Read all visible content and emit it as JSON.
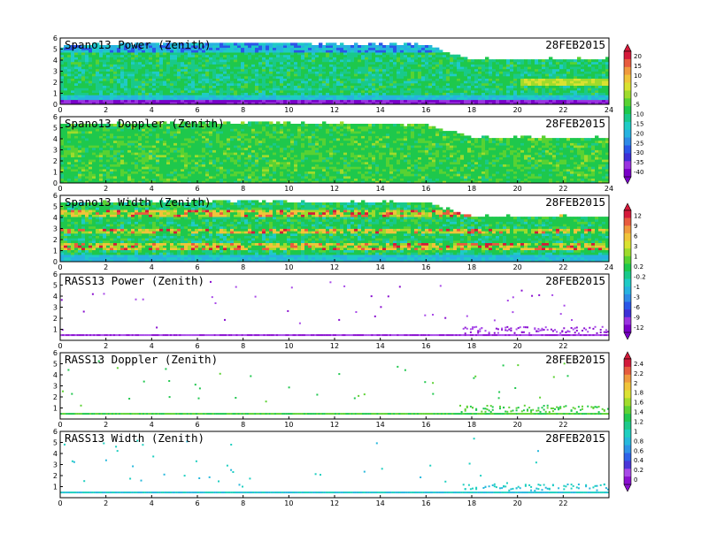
{
  "colors": {
    "profiler_scale": [
      "#7a00c8",
      "#9a33e0",
      "#3d2fd6",
      "#2a56e8",
      "#2f8ae6",
      "#27b2e0",
      "#1fcbc6",
      "#19c98a",
      "#1ec84c",
      "#58d233",
      "#9edb2c",
      "#d9e231",
      "#f0c43a",
      "#f09a3e",
      "#e85b3e",
      "#d5193a"
    ],
    "rass_scale": [
      "#8a10d0",
      "#a84ae8",
      "#4a36d8",
      "#2e62e8",
      "#2f93e6",
      "#27b8dc",
      "#1fcfc0",
      "#1ec98a",
      "#22c850",
      "#5ed234",
      "#a2dc2c",
      "#dbe233",
      "#f0c43a",
      "#ef9a3f",
      "#e65c3e",
      "#d21a3a"
    ]
  },
  "panels": [
    {
      "title": "Spano13 Power (Zenith)",
      "date": "28FEB2015",
      "type": "profiler",
      "field": "power",
      "colorbar": "A"
    },
    {
      "title": "Spano13 Doppler (Zenith)",
      "date": "28FEB2015",
      "type": "profiler",
      "field": "doppler",
      "colorbar": "A"
    },
    {
      "title": "Spano13 Width (Zenith)",
      "date": "28FEB2015",
      "type": "profiler",
      "field": "width",
      "colorbar": "B"
    },
    {
      "title": "RASS13 Power (Zenith)",
      "date": "28FEB2015",
      "type": "rass",
      "field": "power",
      "colorbar": "B"
    },
    {
      "title": "RASS13 Doppler (Zenith)",
      "date": "28FEB2015",
      "type": "rass",
      "field": "doppler",
      "colorbar": "C"
    },
    {
      "title": "RASS13 Width (Zenith)",
      "date": "28FEB2015",
      "type": "rass",
      "field": "width",
      "colorbar": "C"
    }
  ],
  "colorbars": {
    "A": {
      "labels": [
        "20",
        "15",
        "10",
        "5",
        "0",
        "-5",
        "-10",
        "-15",
        "-20",
        "-25",
        "-30",
        "-35",
        "-40"
      ]
    },
    "B": {
      "labels": [
        "12",
        "9",
        "6",
        "3",
        "1",
        "0.2",
        "-0.2",
        "-1",
        "-3",
        "-6",
        "-9",
        "-12"
      ]
    },
    "C": {
      "labels": [
        "2.4",
        "2.2",
        "2",
        "1.8",
        "1.6",
        "1.4",
        "1.2",
        "1",
        "0.8",
        "0.6",
        "0.4",
        "0.2",
        "0"
      ]
    }
  },
  "chart_data": [
    {
      "type": "heatmap",
      "title": "Spano13 Power (Zenith)",
      "date": "28FEB2015",
      "xlim": [
        0,
        24
      ],
      "ylim": [
        0,
        6
      ],
      "x_ticks": [
        "0",
        "2",
        "4",
        "6",
        "8",
        "10",
        "12",
        "14",
        "16",
        "18",
        "20",
        "22",
        "24"
      ],
      "y_ticks": [
        "0",
        "1",
        "2",
        "3",
        "4",
        "5",
        "6"
      ],
      "data_top_km": [
        [
          0,
          5.2
        ],
        [
          6,
          5.5
        ],
        [
          12,
          5.4
        ],
        [
          16,
          5.3
        ],
        [
          17,
          4.5
        ],
        [
          18,
          4.0
        ],
        [
          24,
          4.0
        ]
      ],
      "colorbar": [
        "20",
        "15",
        "10",
        "5",
        "0",
        "-5",
        "-10",
        "-15",
        "-20",
        "-25",
        "-30",
        "-35",
        "-40"
      ]
    },
    {
      "type": "heatmap",
      "title": "Spano13 Doppler (Zenith)",
      "date": "28FEB2015",
      "xlim": [
        0,
        24
      ],
      "ylim": [
        0,
        6
      ],
      "x_ticks": [
        "0",
        "2",
        "4",
        "6",
        "8",
        "10",
        "12",
        "14",
        "16",
        "18",
        "20",
        "22",
        "24"
      ],
      "y_ticks": [
        "0",
        "1",
        "2",
        "3",
        "4",
        "5",
        "6"
      ],
      "data_top_km": [
        [
          0,
          5.2
        ],
        [
          6,
          5.4
        ],
        [
          12,
          5.3
        ],
        [
          16,
          5.2
        ],
        [
          17,
          4.6
        ],
        [
          18,
          4.0
        ],
        [
          24,
          4.0
        ]
      ]
    },
    {
      "type": "heatmap",
      "title": "Spano13 Width (Zenith)",
      "date": "28FEB2015",
      "xlim": [
        0,
        24
      ],
      "ylim": [
        0,
        6
      ],
      "x_ticks": [
        "0",
        "2",
        "4",
        "6",
        "8",
        "10",
        "12",
        "14",
        "16",
        "18",
        "20",
        "22",
        "24"
      ],
      "y_ticks": [
        "0",
        "1",
        "2",
        "3",
        "4",
        "5",
        "6"
      ],
      "data_top_km": [
        [
          0,
          5.2
        ],
        [
          6,
          5.4
        ],
        [
          12,
          5.3
        ],
        [
          16,
          5.3
        ],
        [
          17,
          4.6
        ],
        [
          18,
          4.0
        ],
        [
          24,
          4.0
        ]
      ],
      "colorbar": [
        "12",
        "9",
        "6",
        "3",
        "1",
        "0.2",
        "-0.2",
        "-1",
        "-3",
        "-6",
        "-9",
        "-12"
      ]
    },
    {
      "type": "scatter",
      "title": "RASS13 Power (Zenith)",
      "date": "28FEB2015",
      "xlim": [
        0,
        24
      ],
      "ylim": [
        0,
        6
      ],
      "x_ticks": [
        "0",
        "2",
        "4",
        "6",
        "8",
        "10",
        "12",
        "14",
        "16",
        "18",
        "20",
        "22"
      ],
      "y_ticks": [
        "1",
        "2",
        "3",
        "4",
        "5",
        "6"
      ],
      "band_km": [
        0.5,
        0.8
      ]
    },
    {
      "type": "scatter",
      "title": "RASS13 Doppler (Zenith)",
      "date": "28FEB2015",
      "xlim": [
        0,
        24
      ],
      "ylim": [
        0,
        6
      ],
      "x_ticks": [
        "0",
        "2",
        "4",
        "6",
        "8",
        "10",
        "12",
        "14",
        "16",
        "18",
        "20",
        "22"
      ],
      "y_ticks": [
        "1",
        "2",
        "3",
        "4",
        "5",
        "6"
      ],
      "band_km": [
        0.5,
        0.8
      ],
      "colorbar": [
        "2.4",
        "2.2",
        "2",
        "1.8",
        "1.6",
        "1.4",
        "1.2",
        "1",
        "0.8",
        "0.6",
        "0.4",
        "0.2",
        "0"
      ]
    },
    {
      "type": "scatter",
      "title": "RASS13 Width (Zenith)",
      "date": "28FEB2015",
      "xlim": [
        0,
        24
      ],
      "ylim": [
        0,
        6
      ],
      "x_ticks": [
        "0",
        "2",
        "4",
        "6",
        "8",
        "10",
        "12",
        "14",
        "16",
        "18",
        "20",
        "22"
      ],
      "y_ticks": [
        "1",
        "2",
        "3",
        "4",
        "5",
        "6"
      ],
      "band_km": [
        0.5,
        0.8
      ]
    }
  ]
}
